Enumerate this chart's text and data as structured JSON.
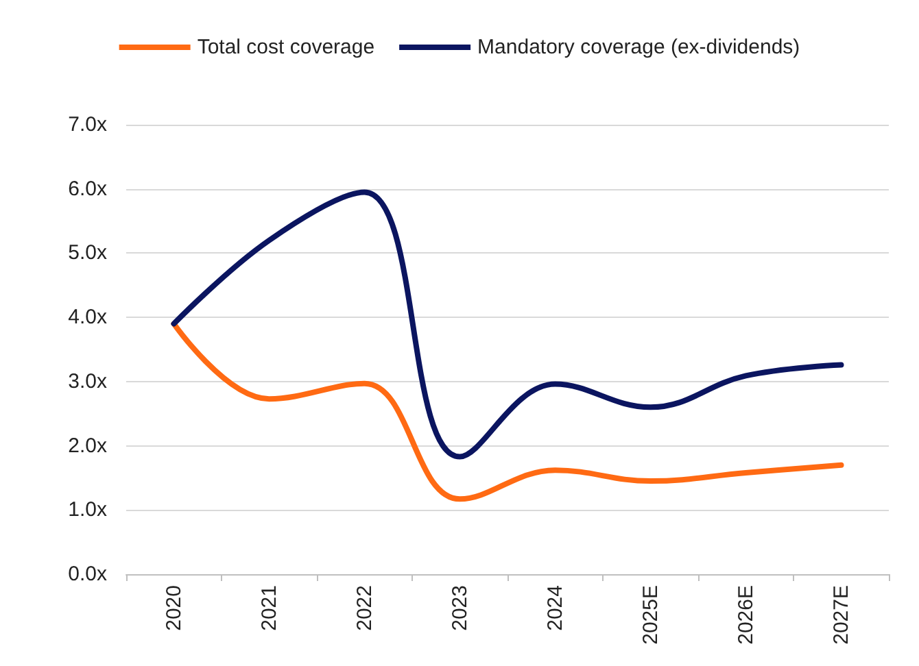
{
  "chart_data": {
    "type": "line",
    "categories": [
      "2020",
      "2021",
      "2022",
      "2023",
      "2024",
      "2025E",
      "2026E",
      "2027E"
    ],
    "series": [
      {
        "name": "Total cost coverage",
        "color": "#ff6a13",
        "values": [
          3.9,
          2.73,
          2.97,
          1.17,
          1.62,
          1.45,
          1.58,
          1.7
        ]
      },
      {
        "name": "Mandatory coverage (ex-dividends)",
        "color": "#0b1560",
        "values": [
          3.9,
          5.2,
          5.95,
          1.83,
          2.96,
          2.6,
          3.09,
          3.26
        ]
      }
    ],
    "ylim": [
      0,
      7
    ],
    "yticks": [
      {
        "value": 0,
        "label": "0.0x"
      },
      {
        "value": 1,
        "label": "1.0x"
      },
      {
        "value": 2,
        "label": "2.0x"
      },
      {
        "value": 3,
        "label": "3.0x"
      },
      {
        "value": 4,
        "label": "4.0x"
      },
      {
        "value": 5,
        "label": "5.0x"
      },
      {
        "value": 6,
        "label": "6.0x"
      },
      {
        "value": 7,
        "label": "7.0x"
      }
    ],
    "grid": "y",
    "legend": "top",
    "marker": "none",
    "line_style": "solid"
  }
}
